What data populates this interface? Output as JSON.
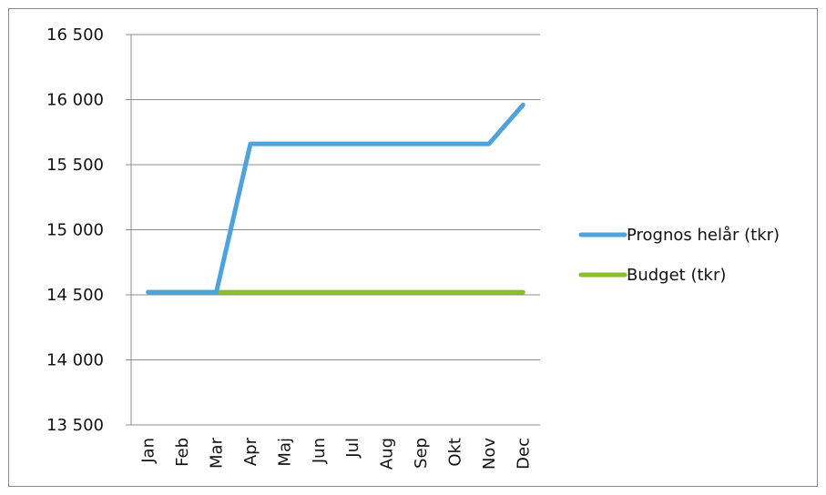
{
  "chart_data": {
    "type": "line",
    "categories": [
      "Jan",
      "Feb",
      "Mar",
      "Apr",
      "Maj",
      "Jun",
      "Jul",
      "Aug",
      "Sep",
      "Okt",
      "Nov",
      "Dec"
    ],
    "series": [
      {
        "name": "Prognos helår (tkr)",
        "color": "#4ea3dc",
        "values": [
          14520,
          14520,
          14520,
          15660,
          15660,
          15660,
          15660,
          15660,
          15660,
          15660,
          15660,
          15960
        ]
      },
      {
        "name": "Budget (tkr)",
        "color": "#8cbd2d",
        "values": [
          14520,
          14520,
          14520,
          14520,
          14520,
          14520,
          14520,
          14520,
          14520,
          14520,
          14520,
          14520
        ]
      }
    ],
    "ylim": [
      13500,
      16500
    ],
    "yticks": [
      "13 500",
      "14 000",
      "14 500",
      "15 000",
      "15 500",
      "16 000",
      "16 500"
    ],
    "ytick_values": [
      13500,
      14000,
      14500,
      15000,
      15500,
      16000,
      16500
    ],
    "grid": true,
    "legend_position": "right"
  }
}
